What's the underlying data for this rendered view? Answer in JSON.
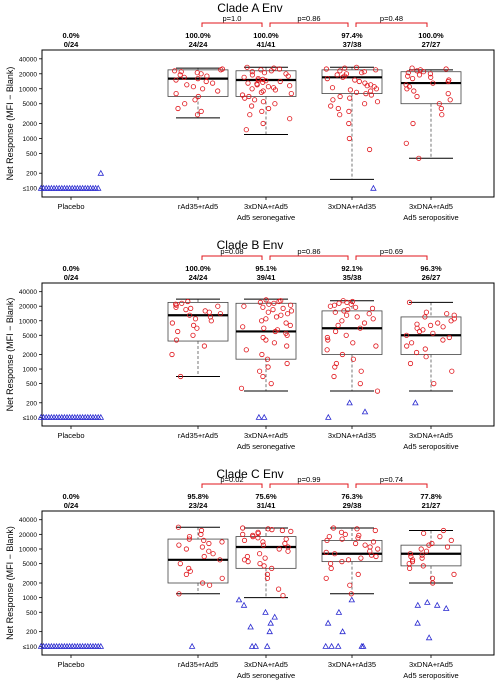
{
  "figure": {
    "ylabel": "Net Response (MFI − Blank)",
    "y_ticks": [
      "40000",
      "20000",
      "10000",
      "5000",
      "2000",
      "1000",
      "500",
      "200",
      "≤100"
    ],
    "y_tick_values": [
      40000,
      20000,
      10000,
      5000,
      2000,
      1000,
      500,
      200,
      100
    ],
    "groups": [
      "Placebo",
      "rAd35+rAd5",
      "3xDNA+rAd5",
      "3xDNA+rAd35",
      "3xDNA+rAd5"
    ],
    "subgroups": [
      "Ad5 seronegative",
      "Ad5 seropositive"
    ],
    "colors": {
      "responder": "#e0151b",
      "nonresponder": "#2a2ad0",
      "pbar": "#e0151b",
      "box": "#444444",
      "median": "#000000"
    }
  },
  "chart_data": [
    {
      "type": "box",
      "title": "Clade A Env",
      "yscale": "log",
      "ylim": [
        80,
        50000
      ],
      "categories": [
        "Placebo",
        "rAd35+rAd5",
        "3xDNA+rAd5",
        "3xDNA+rAd35",
        "3xDNA+rAd5"
      ],
      "response_rate": [
        "0.0%",
        "100.0%",
        "100.0%",
        "97.4%",
        "100.0%"
      ],
      "counts": [
        "0/24",
        "24/24",
        "41/41",
        "37/38",
        "27/27"
      ],
      "pvalues": [
        {
          "from": 1,
          "to": 2,
          "label": "p=1.0"
        },
        {
          "from": 2,
          "to": 3,
          "label": "p=0.86"
        },
        {
          "from": 3,
          "to": 4,
          "label": "p=0.48"
        }
      ],
      "boxes": [
        null,
        {
          "q1": 7000,
          "median": 16000,
          "q3": 24000,
          "wlow": 2600,
          "whigh": 26000
        },
        {
          "q1": 7000,
          "median": 15000,
          "q3": 23000,
          "wlow": 1200,
          "whigh": 27000
        },
        {
          "q1": 8000,
          "median": 17000,
          "q3": 24000,
          "wlow": 150,
          "whigh": 27000
        },
        {
          "q1": 5000,
          "median": 13000,
          "q3": 22000,
          "wlow": 400,
          "whigh": 24000
        }
      ],
      "points": [
        {
          "responders": [],
          "nonresponders": [
            100,
            100,
            100,
            100,
            100,
            100,
            100,
            100,
            100,
            100,
            100,
            100,
            100,
            100,
            100,
            100,
            100,
            100,
            100,
            100,
            100,
            100,
            100,
            200
          ]
        },
        {
          "responders": [
            3000,
            3500,
            4000,
            5000,
            6000,
            7000,
            8000,
            9000,
            10000,
            11000,
            12000,
            13000,
            14000,
            15000,
            16000,
            17000,
            18000,
            19000,
            20000,
            21000,
            22000,
            23000,
            24000,
            25000
          ],
          "nonresponders": []
        },
        {
          "responders": [
            1500,
            2000,
            2500,
            3000,
            3500,
            4000,
            5000,
            6000,
            7000,
            8000,
            9000,
            10000,
            11000,
            12000,
            13000,
            14000,
            15000,
            16000,
            17000,
            18000,
            19000,
            20000,
            21000,
            22000,
            23000,
            24000,
            25000,
            26000,
            27000,
            4500,
            5500,
            6500,
            7500,
            8500,
            9500,
            10500,
            11500,
            12500,
            13500,
            14500,
            15500
          ],
          "nonresponders": []
        },
        {
          "responders": [
            600,
            1000,
            2000,
            3000,
            4000,
            5000,
            6000,
            7000,
            8000,
            9000,
            10000,
            11000,
            12000,
            13000,
            14000,
            15000,
            16000,
            17000,
            18000,
            19000,
            20000,
            21000,
            22000,
            23000,
            24000,
            25000,
            26000,
            27000,
            3500,
            4500,
            5500,
            6500,
            7500,
            8500,
            9500,
            10500,
            11500
          ],
          "nonresponders": [
            100
          ]
        },
        {
          "responders": [
            400,
            800,
            2000,
            3000,
            4000,
            5000,
            6000,
            7000,
            8000,
            9000,
            10000,
            11000,
            12000,
            13000,
            14000,
            15000,
            16000,
            17000,
            18000,
            19000,
            20000,
            21000,
            22000,
            23000,
            24000,
            25000,
            26000
          ],
          "nonresponders": []
        }
      ]
    },
    {
      "type": "box",
      "title": "Clade B Env",
      "yscale": "log",
      "ylim": [
        80,
        50000
      ],
      "categories": [
        "Placebo",
        "rAd35+rAd5",
        "3xDNA+rAd5",
        "3xDNA+rAd35",
        "3xDNA+rAd5"
      ],
      "response_rate": [
        "0.0%",
        "100.0%",
        "95.1%",
        "92.1%",
        "96.3%"
      ],
      "counts": [
        "0/24",
        "24/24",
        "39/41",
        "35/38",
        "26/27"
      ],
      "pvalues": [
        {
          "from": 1,
          "to": 2,
          "label": "p=0.08"
        },
        {
          "from": 2,
          "to": 3,
          "label": "p=0.86"
        },
        {
          "from": 3,
          "to": 4,
          "label": "p=0.69"
        }
      ],
      "boxes": [
        null,
        {
          "q1": 3800,
          "median": 13000,
          "q3": 24000,
          "wlow": 700,
          "whigh": 28000
        },
        {
          "q1": 1600,
          "median": 6000,
          "q3": 23000,
          "wlow": 350,
          "whigh": 28000
        },
        {
          "q1": 2000,
          "median": 7000,
          "q3": 16000,
          "wlow": 350,
          "whigh": 26000
        },
        {
          "q1": 2000,
          "median": 5000,
          "q3": 12000,
          "wlow": 350,
          "whigh": 24000
        }
      ],
      "points": [
        {
          "responders": [],
          "nonresponders": [
            100,
            100,
            100,
            100,
            100,
            100,
            100,
            100,
            100,
            100,
            100,
            100,
            100,
            100,
            100,
            100,
            100,
            100,
            100,
            100,
            100,
            100,
            100,
            100
          ]
        },
        {
          "responders": [
            700,
            2000,
            3000,
            4000,
            5000,
            6000,
            7000,
            8000,
            9000,
            10000,
            11000,
            12000,
            13000,
            14000,
            15000,
            16000,
            17000,
            18000,
            19000,
            20000,
            21000,
            22000,
            23000,
            25000
          ],
          "nonresponders": []
        },
        {
          "responders": [
            400,
            500,
            700,
            900,
            1100,
            1300,
            1600,
            2000,
            2500,
            3000,
            3500,
            4000,
            5000,
            6000,
            7000,
            8000,
            9000,
            10000,
            11000,
            12000,
            13000,
            14000,
            15000,
            16000,
            17000,
            18000,
            19000,
            20000,
            21000,
            22000,
            23000,
            24000,
            25000,
            26000,
            27000,
            4500,
            5500,
            6500,
            7500
          ],
          "nonresponders": [
            100,
            100
          ]
        },
        {
          "responders": [
            350,
            500,
            700,
            900,
            1100,
            1300,
            1600,
            2000,
            2500,
            3000,
            3500,
            4000,
            5000,
            6000,
            7000,
            8000,
            9000,
            10000,
            11000,
            12000,
            13000,
            14000,
            15000,
            16000,
            17000,
            18000,
            19000,
            20000,
            21000,
            22000,
            23000,
            24000,
            25000,
            26000,
            4500
          ],
          "nonresponders": [
            100,
            130,
            200
          ]
        },
        {
          "responders": [
            500,
            900,
            1300,
            1800,
            2200,
            2600,
            3000,
            3500,
            4000,
            4500,
            5000,
            5500,
            6000,
            6500,
            7000,
            7500,
            8000,
            8500,
            9000,
            10000,
            11000,
            12000,
            13000,
            14000,
            15000,
            24000
          ],
          "nonresponders": [
            200
          ]
        }
      ]
    },
    {
      "type": "box",
      "title": "Clade C Env",
      "yscale": "log",
      "ylim": [
        80,
        50000
      ],
      "categories": [
        "Placebo",
        "rAd35+rAd5",
        "3xDNA+rAd5",
        "3xDNA+rAd35",
        "3xDNA+rAd5"
      ],
      "response_rate": [
        "0.0%",
        "95.8%",
        "75.6%",
        "76.3%",
        "77.8%"
      ],
      "counts": [
        "0/24",
        "23/24",
        "31/41",
        "29/38",
        "21/27"
      ],
      "pvalues": [
        {
          "from": 1,
          "to": 2,
          "label": "p=0.02"
        },
        {
          "from": 2,
          "to": 3,
          "label": "p=0.99"
        },
        {
          "from": 3,
          "to": 4,
          "label": "p=0.74"
        }
      ],
      "boxes": [
        null,
        {
          "q1": 2000,
          "median": 6000,
          "q3": 16000,
          "wlow": 1200,
          "whigh": 28000
        },
        {
          "q1": 4000,
          "median": 11000,
          "q3": 18000,
          "wlow": 1000,
          "whigh": 27000
        },
        {
          "q1": 5500,
          "median": 8000,
          "q3": 15000,
          "wlow": 1200,
          "whigh": 27000
        },
        {
          "q1": 4500,
          "median": 8000,
          "q3": 12000,
          "wlow": 2000,
          "whigh": 24000
        }
      ],
      "points": [
        {
          "responders": [],
          "nonresponders": [
            100,
            100,
            100,
            100,
            100,
            100,
            100,
            100,
            100,
            100,
            100,
            100,
            100,
            100,
            100,
            100,
            100,
            100,
            100,
            100,
            100,
            100,
            100,
            100
          ]
        },
        {
          "responders": [
            1200,
            1800,
            2000,
            2500,
            3000,
            3500,
            4000,
            5000,
            6000,
            7000,
            8000,
            9000,
            10000,
            11000,
            12000,
            13000,
            14000,
            15000,
            16000,
            18000,
            20000,
            24000,
            28000
          ],
          "nonresponders": [
            100
          ]
        },
        {
          "responders": [
            1100,
            1500,
            2500,
            3000,
            4000,
            5000,
            6000,
            7000,
            8000,
            9000,
            10000,
            11000,
            12000,
            13000,
            14000,
            15000,
            16000,
            17000,
            18000,
            19000,
            20000,
            21000,
            22000,
            23000,
            24000,
            25000,
            26000,
            27000,
            4500,
            5500,
            6500
          ],
          "nonresponders": [
            100,
            100,
            100,
            200,
            250,
            300,
            400,
            500,
            700,
            900
          ]
        },
        {
          "responders": [
            1200,
            1800,
            2500,
            3000,
            4000,
            5000,
            5500,
            6000,
            6500,
            7000,
            7500,
            8000,
            8500,
            9000,
            10000,
            11000,
            12000,
            13000,
            14000,
            15000,
            16000,
            17000,
            18000,
            19000,
            20000,
            22000,
            24000,
            26000,
            27000
          ],
          "nonresponders": [
            100,
            100,
            100,
            100,
            100,
            200,
            300,
            500,
            900
          ]
        },
        {
          "responders": [
            2000,
            2500,
            3000,
            4000,
            4500,
            5000,
            5500,
            6000,
            6500,
            7000,
            7500,
            8000,
            9000,
            10000,
            11000,
            12000,
            13000,
            15000,
            18000,
            21000,
            24000
          ],
          "nonresponders": [
            150,
            300,
            600,
            700,
            700,
            800
          ]
        }
      ]
    }
  ]
}
